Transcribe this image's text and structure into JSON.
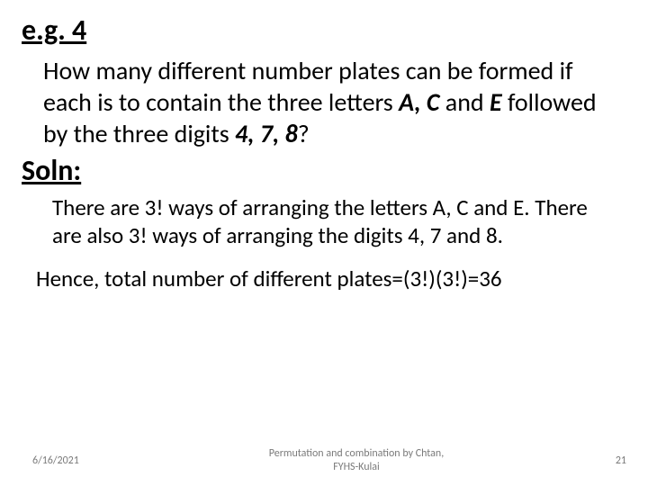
{
  "heading_eg": "e.g. 4",
  "question_part1": "How many different number plates can be formed if each is to contain the three letters ",
  "question_bold1": "A, C",
  "question_part2": " and ",
  "question_bold2": "E",
  "question_part3": " followed by the three digits ",
  "question_bold3": "4, 7, 8",
  "question_part4": "?",
  "heading_soln": "Soln:",
  "body1": "There are 3! ways of arranging the letters A, C and E. There are also 3! ways of arranging the digits 4, 7 and 8.",
  "conclusion": "Hence, total number of different plates=(3!)(3!)=36",
  "footer_date": "6/16/2021",
  "footer_center_line1": "Permutation and combination by Chtan,",
  "footer_center_line2": "FYHS-Kulai",
  "footer_page": "21"
}
